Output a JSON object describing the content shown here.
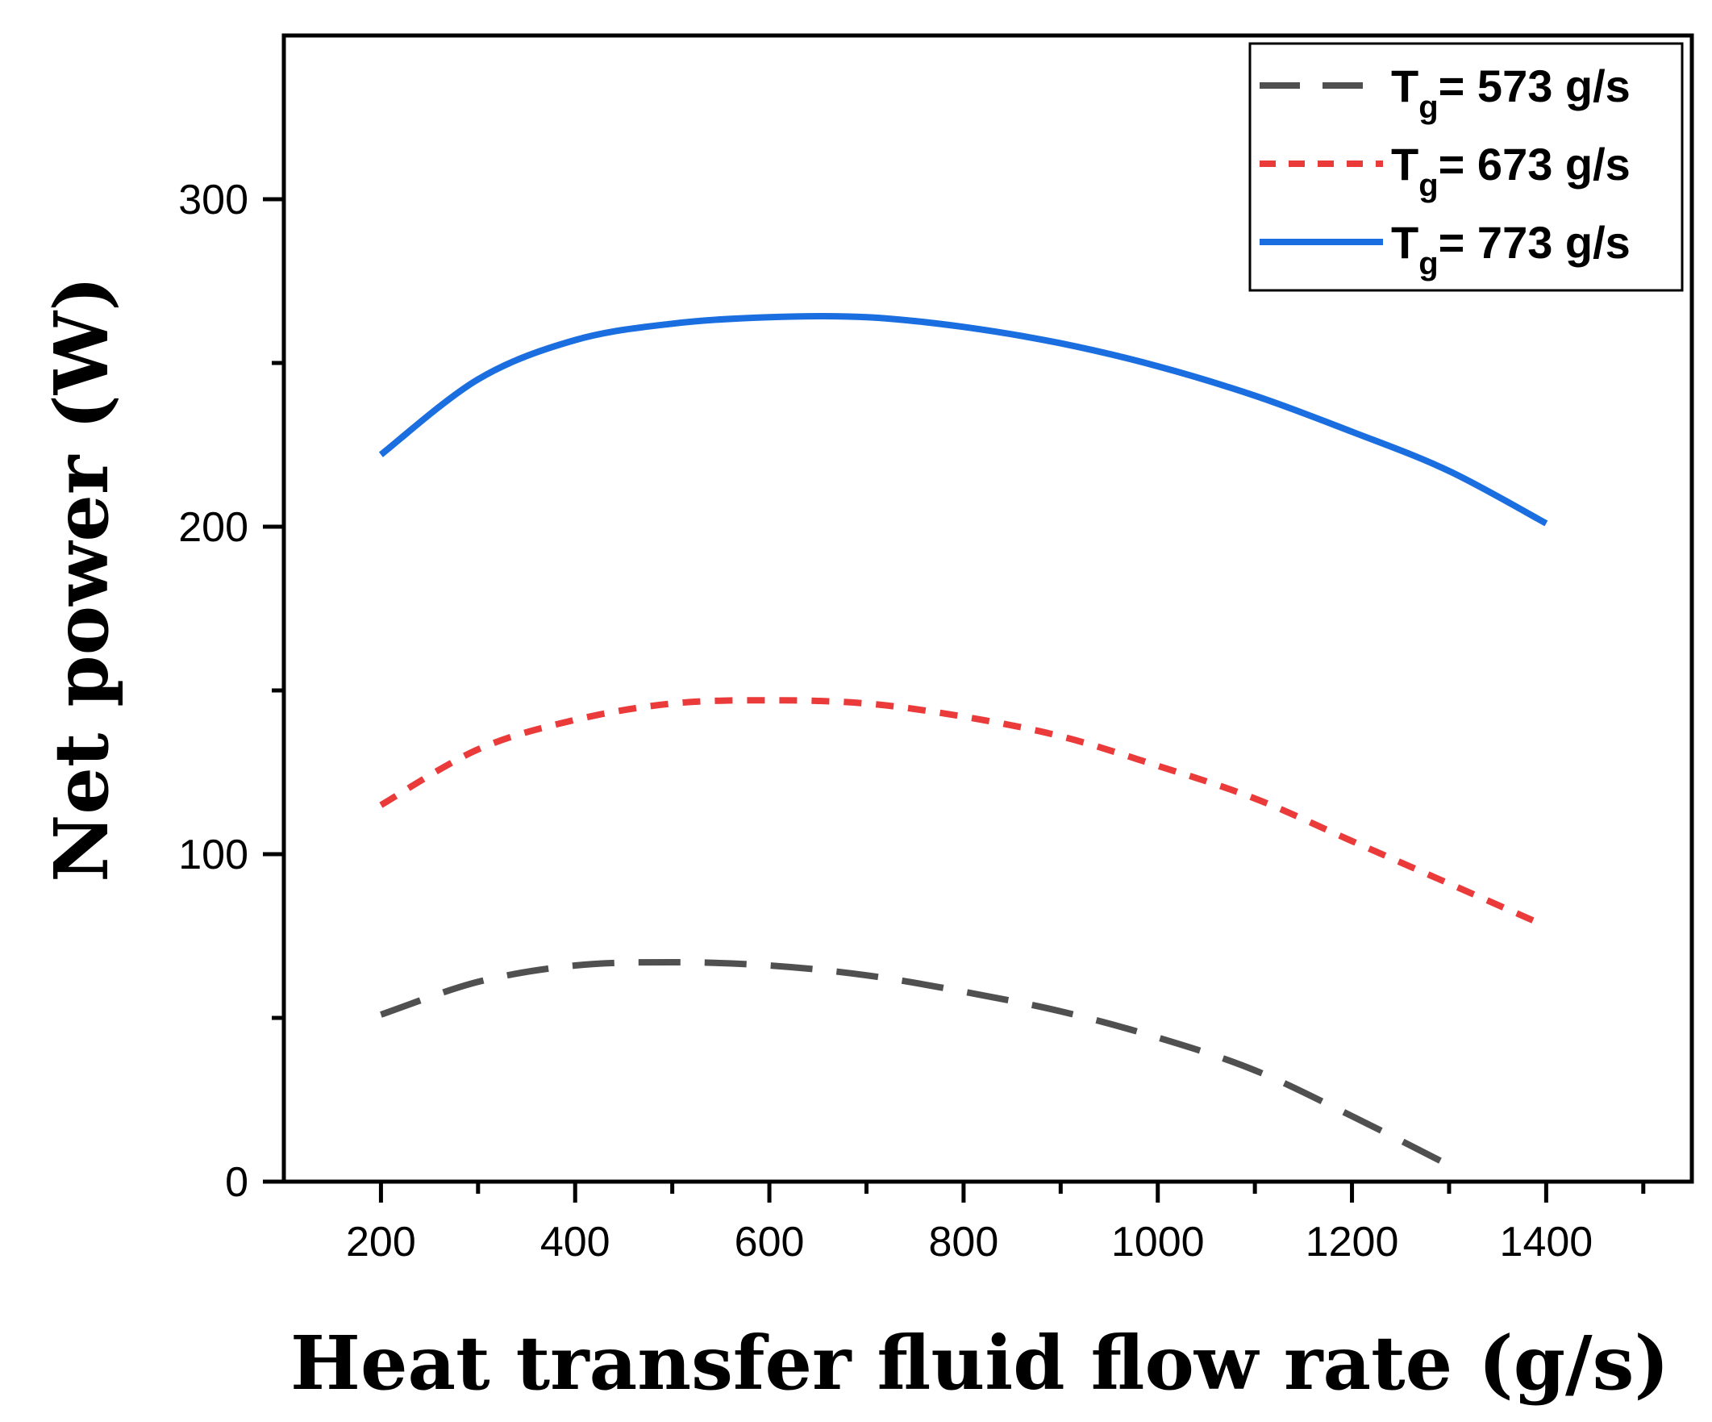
{
  "chart_data": {
    "type": "line",
    "title": "",
    "xlabel": "Heat transfer fluid flow rate (g/s)",
    "ylabel": "Net power (W)",
    "xlim": [
      100,
      1550
    ],
    "ylim": [
      0,
      350
    ],
    "x_ticks": [
      200,
      400,
      600,
      800,
      1000,
      1200,
      1400
    ],
    "x_tick_labels": [
      "200",
      "400",
      "600",
      "800",
      "1000",
      "1200",
      "1400"
    ],
    "x_minor_ticks": [
      300,
      500,
      700,
      900,
      1100,
      1300,
      1500
    ],
    "y_ticks": [
      0,
      100,
      200,
      300
    ],
    "y_tick_labels": [
      "0",
      "100",
      "200",
      "300"
    ],
    "y_minor_ticks": [
      50,
      150,
      250
    ],
    "grid": false,
    "legend_position": "top-right",
    "series": [
      {
        "name": "Tg= 573 g/s",
        "legend_main": "T",
        "legend_sub": "g",
        "legend_rest": "= 573 g/s",
        "style": "dashed",
        "color": "#505050",
        "x": [
          200,
          300,
          400,
          500,
          600,
          700,
          800,
          900,
          1000,
          1100,
          1200,
          1300
        ],
        "y": [
          51,
          61,
          66,
          67,
          66,
          63,
          58,
          52,
          44,
          34,
          20,
          5
        ]
      },
      {
        "name": "Tg= 673 g/s",
        "legend_main": "T",
        "legend_sub": "g",
        "legend_rest": "= 673 g/s",
        "style": "dotted",
        "color": "#ea3a3a",
        "x": [
          200,
          300,
          400,
          500,
          600,
          700,
          800,
          900,
          1000,
          1100,
          1200,
          1300,
          1400
        ],
        "y": [
          115,
          132,
          141,
          146,
          147,
          146,
          142,
          136,
          127,
          117,
          104,
          91,
          78
        ]
      },
      {
        "name": "Tg= 773 g/s",
        "legend_main": "T",
        "legend_sub": "g",
        "legend_rest": "= 773 g/s",
        "style": "solid",
        "color": "#1a6ee0",
        "x": [
          200,
          300,
          400,
          500,
          600,
          700,
          800,
          900,
          1000,
          1100,
          1200,
          1300,
          1400
        ],
        "y": [
          222,
          245,
          257,
          262,
          264,
          264,
          261,
          256,
          249,
          240,
          229,
          217,
          201
        ]
      }
    ]
  }
}
